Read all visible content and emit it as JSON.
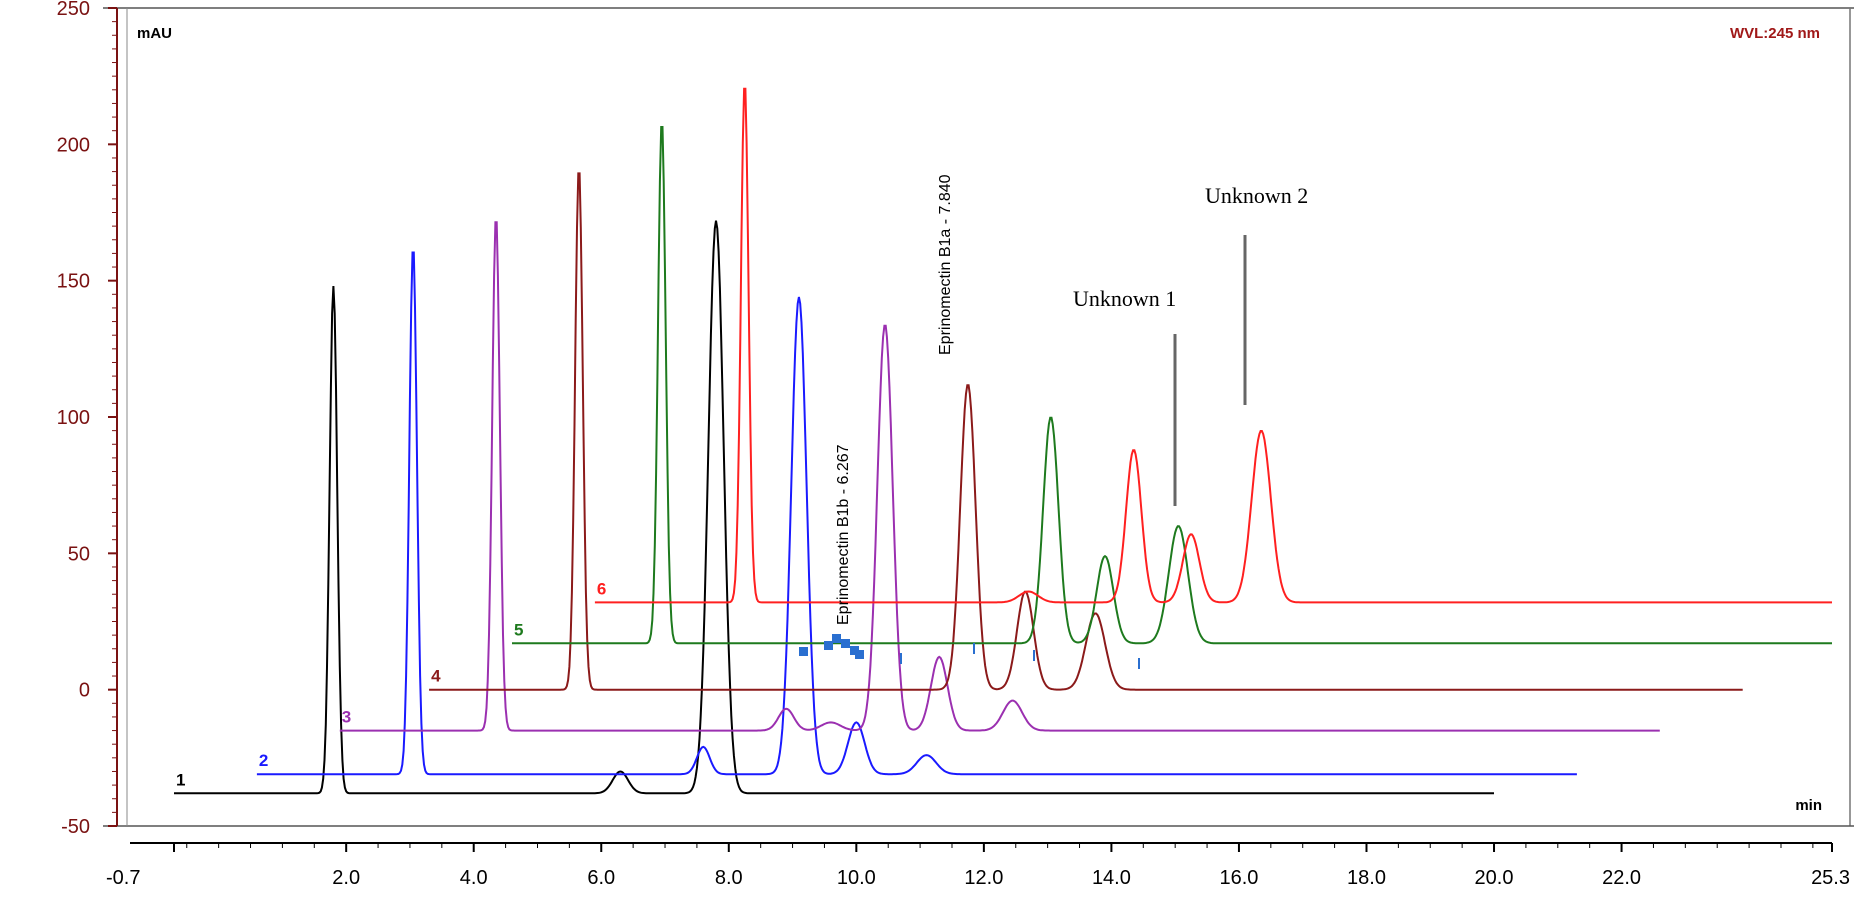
{
  "chart_data": {
    "type": "line",
    "title": "",
    "ylabel": "mAU",
    "xlabel": "min",
    "wavelength_label": "WVL:245 nm",
    "xlim": [
      -0.7,
      25.3
    ],
    "ylim": [
      -50,
      250
    ],
    "x_ticks": [
      "-0.7",
      "2.0",
      "4.0",
      "6.0",
      "8.0",
      "10.0",
      "12.0",
      "14.0",
      "16.0",
      "18.0",
      "20.0",
      "22.0",
      "25.3"
    ],
    "y_ticks": [
      "250",
      "200",
      "150",
      "100",
      "50",
      "0",
      "-50"
    ],
    "series": [
      {
        "name": "1",
        "color": "#000000",
        "baseline": -38,
        "x_start": -0.7,
        "x_end": 20.0,
        "peaks": [
          {
            "x": 1.8,
            "height": 186,
            "width": 0.06
          },
          {
            "x": 6.3,
            "height": 8,
            "width": 0.12
          },
          {
            "x": 7.8,
            "height": 210,
            "width": 0.12
          }
        ]
      },
      {
        "name": "2",
        "color": "#1a1aff",
        "baseline": -31,
        "x_start": 0.6,
        "x_end": 21.3,
        "peaks": [
          {
            "x": 3.05,
            "height": 194,
            "width": 0.06
          },
          {
            "x": 7.6,
            "height": 10,
            "width": 0.1
          },
          {
            "x": 9.1,
            "height": 175,
            "width": 0.12
          },
          {
            "x": 10.0,
            "height": 19,
            "width": 0.13
          },
          {
            "x": 11.1,
            "height": 7,
            "width": 0.15
          }
        ]
      },
      {
        "name": "3",
        "color": "#9b30b0",
        "baseline": -15,
        "x_start": 1.9,
        "x_end": 22.6,
        "peaks": [
          {
            "x": 4.35,
            "height": 189,
            "width": 0.06
          },
          {
            "x": 8.9,
            "height": 8,
            "width": 0.12
          },
          {
            "x": 9.6,
            "height": 3,
            "width": 0.15
          },
          {
            "x": 10.45,
            "height": 149,
            "width": 0.12
          },
          {
            "x": 11.3,
            "height": 27,
            "width": 0.13
          },
          {
            "x": 12.45,
            "height": 11,
            "width": 0.15
          }
        ]
      },
      {
        "name": "4",
        "color": "#8b1a1a",
        "baseline": 0,
        "x_start": 3.3,
        "x_end": 23.9,
        "peaks": [
          {
            "x": 5.65,
            "height": 192,
            "width": 0.06
          },
          {
            "x": 11.75,
            "height": 112,
            "width": 0.12
          },
          {
            "x": 12.65,
            "height": 36,
            "width": 0.13
          },
          {
            "x": 13.75,
            "height": 28,
            "width": 0.15
          }
        ]
      },
      {
        "name": "5",
        "color": "#1e7a1e",
        "baseline": 17,
        "x_start": 4.6,
        "x_end": 25.3,
        "peaks": [
          {
            "x": 6.95,
            "height": 192,
            "width": 0.06
          },
          {
            "x": 13.05,
            "height": 83,
            "width": 0.12
          },
          {
            "x": 13.9,
            "height": 32,
            "width": 0.13
          },
          {
            "x": 15.05,
            "height": 43,
            "width": 0.15
          }
        ]
      },
      {
        "name": "6",
        "color": "#ff2020",
        "baseline": 32,
        "x_start": 5.9,
        "x_end": 25.3,
        "peaks": [
          {
            "x": 8.25,
            "height": 191,
            "width": 0.06
          },
          {
            "x": 12.7,
            "height": 4,
            "width": 0.15
          },
          {
            "x": 14.35,
            "height": 56,
            "width": 0.12
          },
          {
            "x": 15.25,
            "height": 25,
            "width": 0.13
          },
          {
            "x": 16.35,
            "height": 63,
            "width": 0.15
          }
        ]
      }
    ],
    "annotations": [
      {
        "text": "Eprinomectin B1b - 6.267"
      },
      {
        "text": "Eprinomectin B1a - 7.840"
      },
      {
        "text": "Unknown 1"
      },
      {
        "text": "Unknown 2"
      }
    ]
  }
}
